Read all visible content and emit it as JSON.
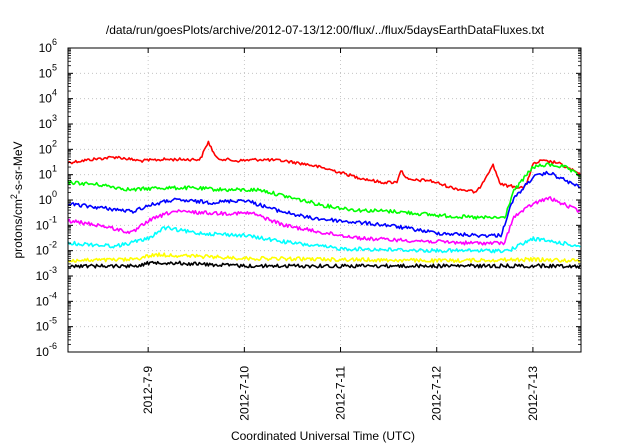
{
  "chart_data": {
    "type": "line",
    "title": "/data/run/goesPlots/archive/2012-07-13/12:00/flux/../flux/5daysEarthDataFluxes.txt",
    "xlabel": "Coordinated Universal Time (UTC)",
    "ylabel": {
      "base": "protons/cm",
      "sup": "2",
      "rest": "-s-sr-MeV"
    },
    "ylog": true,
    "ylim": [
      1e-06,
      1000000.0
    ],
    "xlim": [
      "2012-07-08T04:00",
      "2012-07-13T12:00"
    ],
    "grid": true,
    "yticks": [
      {
        "exp": -6,
        "label": "10",
        "sup": "-6"
      },
      {
        "exp": -5,
        "label": "10",
        "sup": "-5"
      },
      {
        "exp": -4,
        "label": "10",
        "sup": "-4"
      },
      {
        "exp": -3,
        "label": "10",
        "sup": "-3"
      },
      {
        "exp": -2,
        "label": "10",
        "sup": "-2"
      },
      {
        "exp": -1,
        "label": "10",
        "sup": "-1"
      },
      {
        "exp": 0,
        "label": "10",
        "sup": "0"
      },
      {
        "exp": 1,
        "label": "10",
        "sup": "1"
      },
      {
        "exp": 2,
        "label": "10",
        "sup": "2"
      },
      {
        "exp": 3,
        "label": "10",
        "sup": "3"
      },
      {
        "exp": 4,
        "label": "10",
        "sup": "4"
      },
      {
        "exp": 5,
        "label": "10",
        "sup": "5"
      },
      {
        "exp": 6,
        "label": "10",
        "sup": "6"
      }
    ],
    "xticks": [
      {
        "t": "2012-07-09T00:00",
        "label": "2012-7-9"
      },
      {
        "t": "2012-07-10T00:00",
        "label": "2012-7-10"
      },
      {
        "t": "2012-07-11T00:00",
        "label": "2012-7-11"
      },
      {
        "t": "2012-07-12T00:00",
        "label": "2012-7-12"
      },
      {
        "t": "2012-07-13T00:00",
        "label": "2012-7-13"
      }
    ],
    "series": [
      {
        "color": "#ff0000",
        "points": [
          [
            "2012-07-08T04:00",
            30
          ],
          [
            "2012-07-08T10:00",
            40
          ],
          [
            "2012-07-08T16:00",
            50
          ],
          [
            "2012-07-08T22:00",
            35
          ],
          [
            "2012-07-09T04:00",
            40
          ],
          [
            "2012-07-09T10:00",
            40
          ],
          [
            "2012-07-09T13:00",
            40
          ],
          [
            "2012-07-09T15:00",
            200
          ],
          [
            "2012-07-09T17:00",
            45
          ],
          [
            "2012-07-09T22:00",
            35
          ],
          [
            "2012-07-10T04:00",
            40
          ],
          [
            "2012-07-10T10:00",
            35
          ],
          [
            "2012-07-10T16:00",
            25
          ],
          [
            "2012-07-10T22:00",
            15
          ],
          [
            "2012-07-11T04:00",
            8
          ],
          [
            "2012-07-11T10:00",
            5
          ],
          [
            "2012-07-11T14:00",
            5
          ],
          [
            "2012-07-11T15:00",
            15
          ],
          [
            "2012-07-11T17:00",
            6
          ],
          [
            "2012-07-11T22:00",
            6
          ],
          [
            "2012-07-12T04:00",
            3
          ],
          [
            "2012-07-12T10:00",
            2
          ],
          [
            "2012-07-12T14:00",
            25
          ],
          [
            "2012-07-12T16:00",
            4
          ],
          [
            "2012-07-12T22:00",
            3
          ],
          [
            "2012-07-13T00:00",
            25
          ],
          [
            "2012-07-13T02:00",
            35
          ],
          [
            "2012-07-13T06:00",
            30
          ],
          [
            "2012-07-13T12:00",
            10
          ]
        ]
      },
      {
        "color": "#00ff00",
        "points": [
          [
            "2012-07-08T04:00",
            5
          ],
          [
            "2012-07-08T12:00",
            4
          ],
          [
            "2012-07-08T20:00",
            2.5
          ],
          [
            "2012-07-09T02:00",
            3
          ],
          [
            "2012-07-09T10:00",
            3
          ],
          [
            "2012-07-09T20:00",
            2.5
          ],
          [
            "2012-07-10T04:00",
            2.5
          ],
          [
            "2012-07-10T12:00",
            1.2
          ],
          [
            "2012-07-10T20:00",
            0.6
          ],
          [
            "2012-07-11T04:00",
            0.4
          ],
          [
            "2012-07-11T14:00",
            0.35
          ],
          [
            "2012-07-12T00:00",
            0.25
          ],
          [
            "2012-07-12T10:00",
            0.2
          ],
          [
            "2012-07-12T17:00",
            0.2
          ],
          [
            "2012-07-12T19:00",
            2
          ],
          [
            "2012-07-13T00:00",
            20
          ],
          [
            "2012-07-13T04:00",
            25
          ],
          [
            "2012-07-13T08:00",
            20
          ],
          [
            "2012-07-13T12:00",
            8
          ]
        ]
      },
      {
        "color": "#0000ff",
        "points": [
          [
            "2012-07-08T04:00",
            0.7
          ],
          [
            "2012-07-08T12:00",
            0.5
          ],
          [
            "2012-07-08T20:00",
            0.35
          ],
          [
            "2012-07-09T00:00",
            0.6
          ],
          [
            "2012-07-09T06:00",
            1.0
          ],
          [
            "2012-07-09T16:00",
            0.8
          ],
          [
            "2012-07-10T00:00",
            1.0
          ],
          [
            "2012-07-10T08:00",
            0.4
          ],
          [
            "2012-07-10T16:00",
            0.2
          ],
          [
            "2012-07-11T00:00",
            0.15
          ],
          [
            "2012-07-11T12:00",
            0.1
          ],
          [
            "2012-07-12T00:00",
            0.05
          ],
          [
            "2012-07-12T10:00",
            0.04
          ],
          [
            "2012-07-12T16:00",
            0.04
          ],
          [
            "2012-07-12T19:00",
            1
          ],
          [
            "2012-07-13T00:00",
            8
          ],
          [
            "2012-07-13T04:00",
            12
          ],
          [
            "2012-07-13T12:00",
            3
          ]
        ]
      },
      {
        "color": "#ff00ff",
        "points": [
          [
            "2012-07-08T04:00",
            0.15
          ],
          [
            "2012-07-08T12:00",
            0.1
          ],
          [
            "2012-07-08T20:00",
            0.05
          ],
          [
            "2012-07-09T00:00",
            0.15
          ],
          [
            "2012-07-09T06:00",
            0.35
          ],
          [
            "2012-07-09T18:00",
            0.3
          ],
          [
            "2012-07-10T02:00",
            0.3
          ],
          [
            "2012-07-10T10:00",
            0.1
          ],
          [
            "2012-07-10T20:00",
            0.05
          ],
          [
            "2012-07-11T06:00",
            0.03
          ],
          [
            "2012-07-11T18:00",
            0.025
          ],
          [
            "2012-07-12T08:00",
            0.02
          ],
          [
            "2012-07-12T17:00",
            0.02
          ],
          [
            "2012-07-12T19:00",
            0.2
          ],
          [
            "2012-07-13T00:00",
            0.7
          ],
          [
            "2012-07-13T04:00",
            1.2
          ],
          [
            "2012-07-13T12:00",
            0.35
          ]
        ]
      },
      {
        "color": "#00ffff",
        "points": [
          [
            "2012-07-08T04:00",
            0.02
          ],
          [
            "2012-07-08T16:00",
            0.015
          ],
          [
            "2012-07-09T00:00",
            0.03
          ],
          [
            "2012-07-09T04:00",
            0.08
          ],
          [
            "2012-07-09T12:00",
            0.05
          ],
          [
            "2012-07-10T00:00",
            0.04
          ],
          [
            "2012-07-10T12:00",
            0.02
          ],
          [
            "2012-07-11T00:00",
            0.012
          ],
          [
            "2012-07-12T00:00",
            0.01
          ],
          [
            "2012-07-12T18:00",
            0.01
          ],
          [
            "2012-07-13T00:00",
            0.03
          ],
          [
            "2012-07-13T12:00",
            0.015
          ]
        ]
      },
      {
        "color": "#ffff00",
        "points": [
          [
            "2012-07-08T04:00",
            0.004
          ],
          [
            "2012-07-08T20:00",
            0.0045
          ],
          [
            "2012-07-09T02:00",
            0.007
          ],
          [
            "2012-07-09T12:00",
            0.006
          ],
          [
            "2012-07-10T00:00",
            0.005
          ],
          [
            "2012-07-11T00:00",
            0.0045
          ],
          [
            "2012-07-12T00:00",
            0.004
          ],
          [
            "2012-07-13T00:00",
            0.0045
          ],
          [
            "2012-07-13T12:00",
            0.004
          ]
        ]
      },
      {
        "color": "#000000",
        "points": [
          [
            "2012-07-08T04:00",
            0.0025
          ],
          [
            "2012-07-08T20:00",
            0.0025
          ],
          [
            "2012-07-09T02:00",
            0.0035
          ],
          [
            "2012-07-09T12:00",
            0.003
          ],
          [
            "2012-07-10T00:00",
            0.0025
          ],
          [
            "2012-07-11T00:00",
            0.0025
          ],
          [
            "2012-07-12T00:00",
            0.0025
          ],
          [
            "2012-07-13T00:00",
            0.0025
          ],
          [
            "2012-07-13T12:00",
            0.0025
          ]
        ]
      }
    ]
  }
}
